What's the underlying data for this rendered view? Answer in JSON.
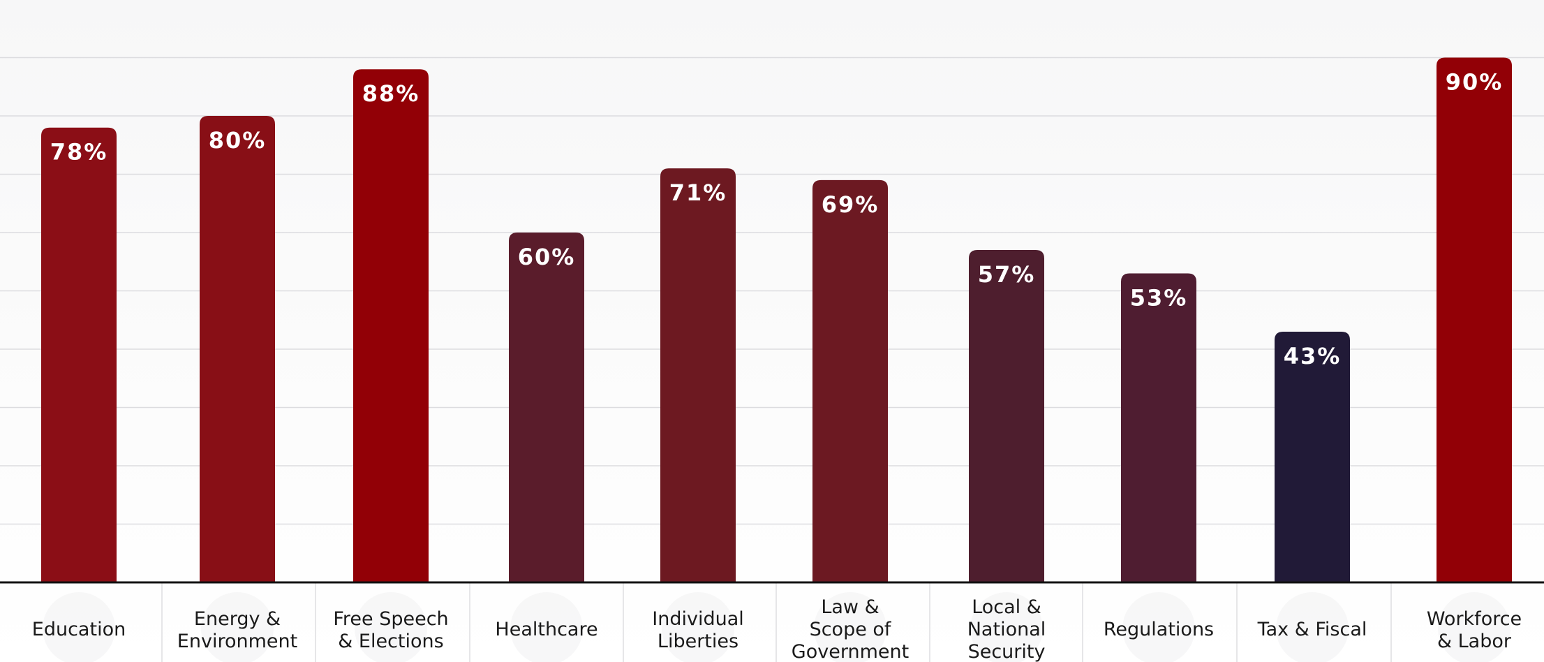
{
  "chart_data": {
    "type": "bar",
    "categories": [
      "Education",
      "Energy & Environment",
      "Free Speech & Elections",
      "Healthcare",
      "Individual Liberties",
      "Law & Scope of Government",
      "Local & National Security",
      "Regulations",
      "Tax & Fiscal",
      "Workforce & Labor"
    ],
    "category_lines": [
      [
        "Education"
      ],
      [
        "Energy &",
        "Environment"
      ],
      [
        "Free Speech",
        "& Elections"
      ],
      [
        "Healthcare"
      ],
      [
        "Individual",
        "Liberties"
      ],
      [
        "Law &",
        "Scope of",
        "Government"
      ],
      [
        "Local &",
        "National",
        "Security"
      ],
      [
        "Regulations"
      ],
      [
        "Tax & Fiscal"
      ],
      [
        "Workforce",
        "& Labor"
      ]
    ],
    "values": [
      78,
      80,
      88,
      60,
      71,
      69,
      57,
      53,
      43,
      90
    ],
    "value_labels": [
      "78%",
      "80%",
      "88%",
      "60%",
      "71%",
      "69%",
      "57%",
      "53%",
      "43%",
      "90%"
    ],
    "colors": [
      "#8b0e16",
      "#880f16",
      "#920006",
      "#5a1c2b",
      "#6d1921",
      "#6c1922",
      "#4e1e2e",
      "#4f1d31",
      "#211a37",
      "#920006"
    ],
    "icons": [
      "graduation-cap-icon",
      "factory-icon",
      "magnifier-icon",
      "caduceus-icon",
      "torch-icon",
      "scales-icon",
      "shield-icon",
      "documents-icon",
      "dollar-icon",
      "wrench-icon"
    ],
    "ylim": [
      0,
      100
    ],
    "grid": true,
    "legend": "none"
  }
}
